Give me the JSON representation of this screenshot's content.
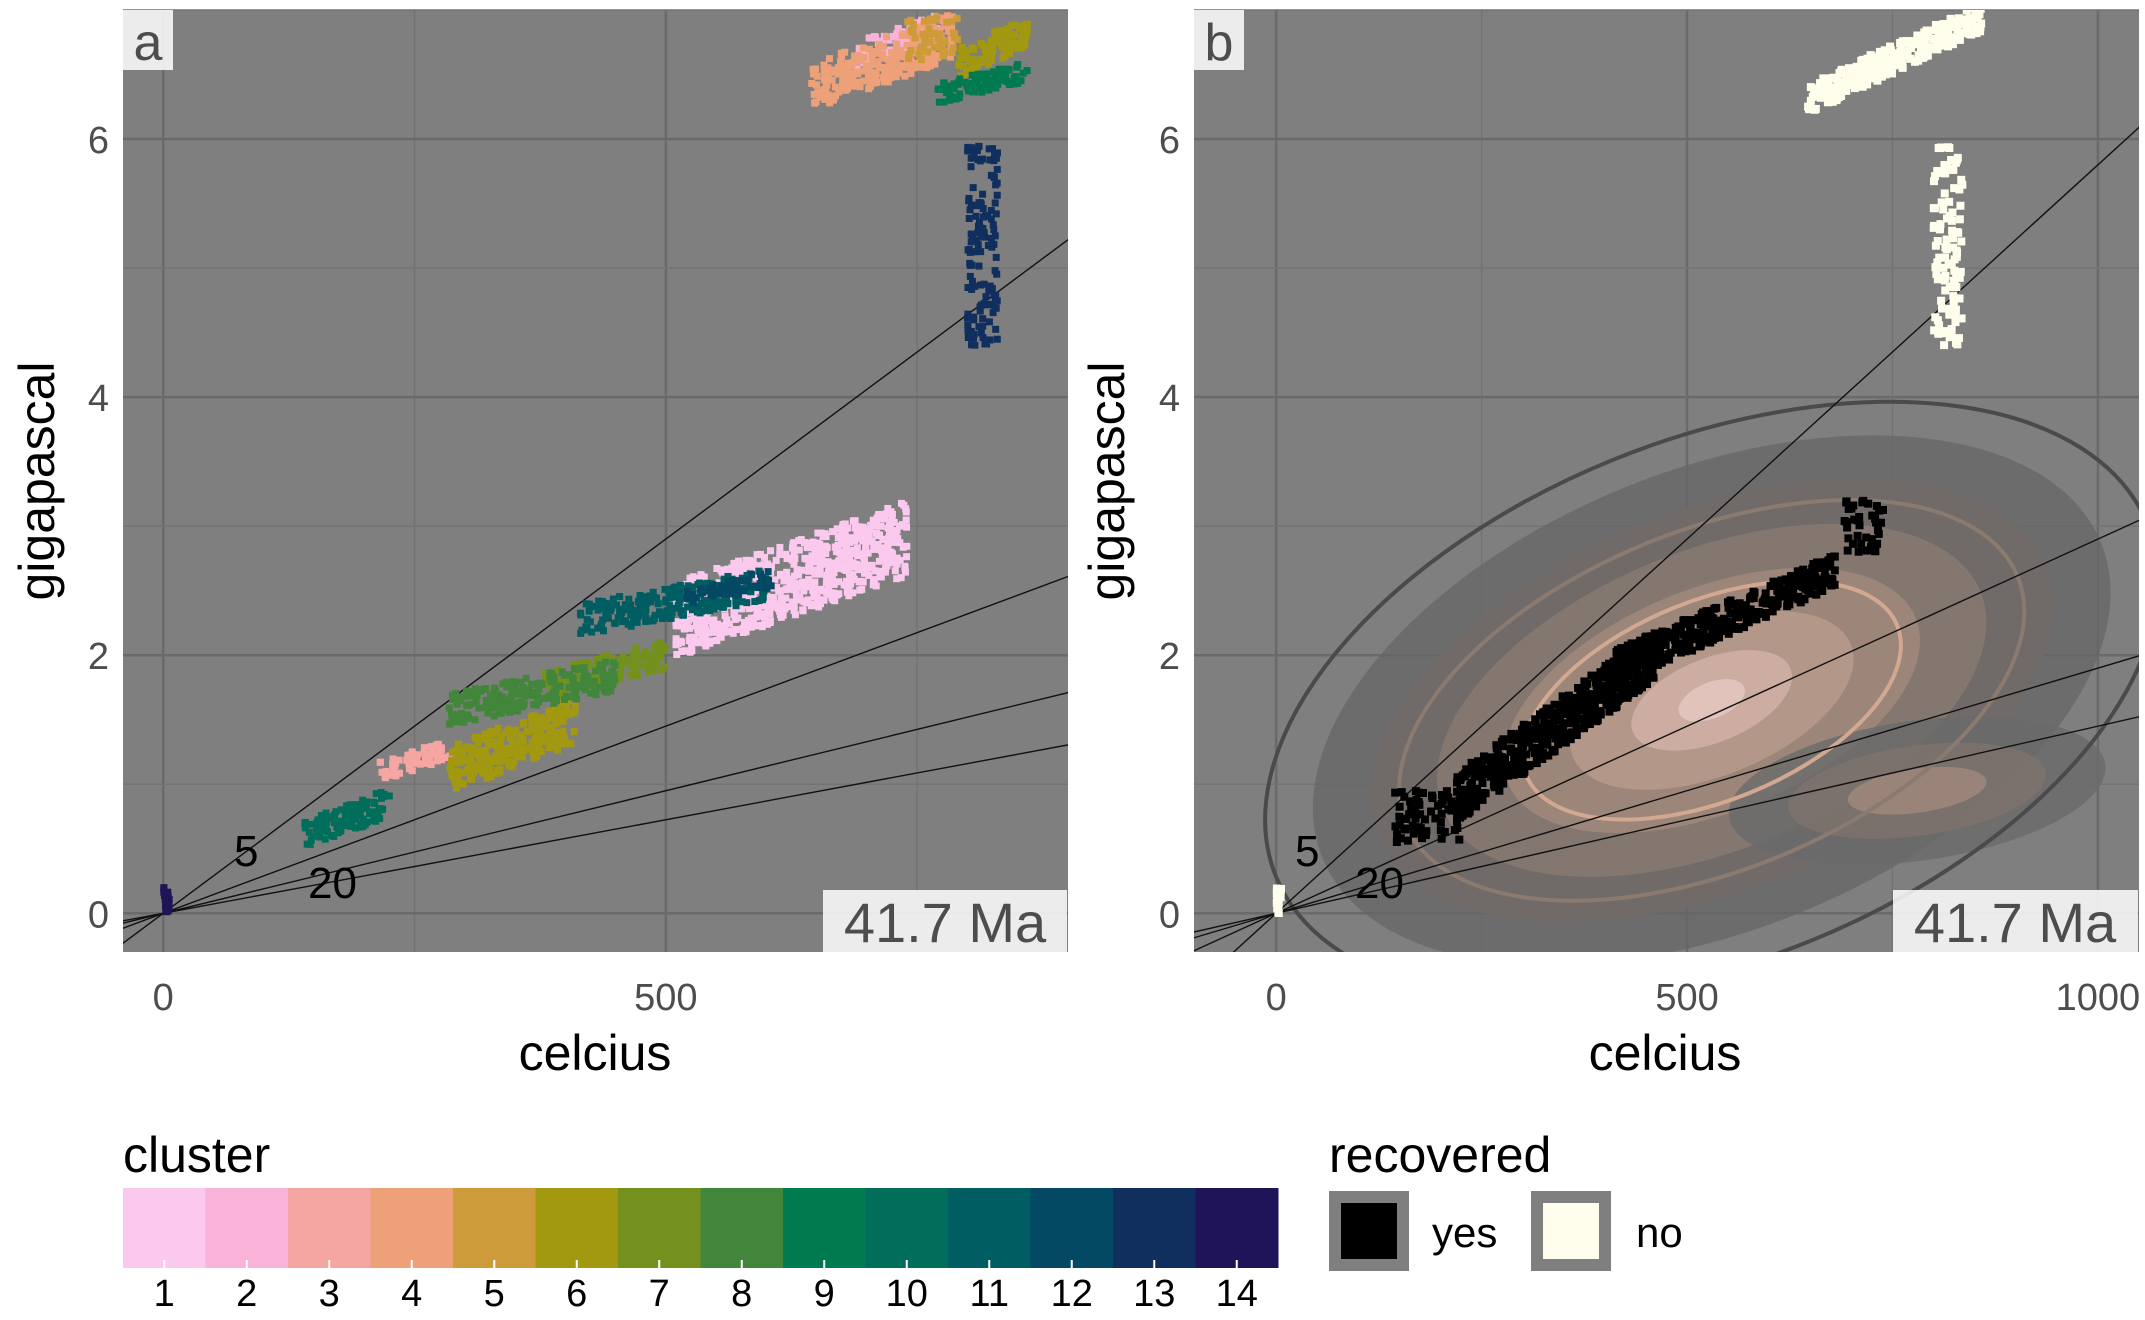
{
  "figure": {
    "panel_a": {
      "tag": "a",
      "age_label": "41.7 Ma",
      "xlabel": "celcius",
      "ylabel": "gigapascal",
      "x_ticks": [
        0,
        500
      ],
      "y_ticks": [
        0,
        2,
        4,
        6
      ]
    },
    "panel_b": {
      "tag": "b",
      "age_label": "41.7 Ma",
      "xlabel": "celcius",
      "ylabel": "gigapascal",
      "x_ticks": [
        0,
        500,
        1000
      ],
      "y_ticks": [
        0,
        2,
        4,
        6
      ]
    },
    "gradient_labels": [
      "5",
      "20"
    ],
    "legend_cluster": {
      "title": "cluster",
      "entries": [
        {
          "label": "1",
          "color": "#FBC8EE"
        },
        {
          "label": "2",
          "color": "#F9B2D8"
        },
        {
          "label": "3",
          "color": "#F6A6A2"
        },
        {
          "label": "4",
          "color": "#EEA078"
        },
        {
          "label": "5",
          "color": "#CD9B3A"
        },
        {
          "label": "6",
          "color": "#A29911"
        },
        {
          "label": "7",
          "color": "#74901D"
        },
        {
          "label": "8",
          "color": "#42863B"
        },
        {
          "label": "9",
          "color": "#007A4F"
        },
        {
          "label": "10",
          "color": "#006E5B"
        },
        {
          "label": "11",
          "color": "#005E62"
        },
        {
          "label": "12",
          "color": "#044964"
        },
        {
          "label": "13",
          "color": "#102E5E"
        },
        {
          "label": "14",
          "color": "#1F1458"
        }
      ]
    },
    "legend_recovered": {
      "title": "recovered",
      "entries": [
        {
          "label": "yes",
          "color": "#000000"
        },
        {
          "label": "no",
          "color": "#FFFEEC"
        }
      ]
    }
  },
  "chart_data": [
    {
      "panel": "a",
      "type": "scatter",
      "xlabel": "celcius",
      "ylabel": "gigapascal",
      "xlim": [
        -40,
        900
      ],
      "ylim": [
        -0.3,
        7.0
      ],
      "background": "#7F7F7F",
      "gradient_lines_slope_gpa_per_c": [
        0.0058,
        0.0029,
        0.0019,
        0.00145
      ],
      "gradient_line_labels": [
        "5",
        "20"
      ],
      "clusters": [
        {
          "cluster": 1,
          "color": "#FBC8EE",
          "x_range": [
            510,
            740
          ],
          "y_range": [
            2.1,
            3.15
          ]
        },
        {
          "cluster": 2,
          "color": "#F9B2D8",
          "x_range": [
            690,
            770
          ],
          "y_range": [
            6.6,
            6.95
          ]
        },
        {
          "cluster": 3,
          "color": "#F6A6A2",
          "x_range": [
            215,
            285
          ],
          "y_range": [
            1.05,
            1.35
          ]
        },
        {
          "cluster": 4,
          "color": "#EEA078",
          "x_range": [
            645,
            785
          ],
          "y_range": [
            6.3,
            6.95
          ]
        },
        {
          "cluster": 5,
          "color": "#CD9B3A",
          "x_range": [
            740,
            790
          ],
          "y_range": [
            6.6,
            6.95
          ]
        },
        {
          "cluster": 6,
          "color": "#A29911",
          "x_range": [
            285,
            410
          ],
          "y_range": [
            1.0,
            1.65
          ]
        },
        {
          "cluster": 6,
          "color": "#A29911",
          "x_range": [
            790,
            860
          ],
          "y_range": [
            6.5,
            6.95
          ]
        },
        {
          "cluster": 7,
          "color": "#74901D",
          "x_range": [
            380,
            500
          ],
          "y_range": [
            1.7,
            2.1
          ]
        },
        {
          "cluster": 8,
          "color": "#42863B",
          "x_range": [
            280,
            450
          ],
          "y_range": [
            1.5,
            1.95
          ]
        },
        {
          "cluster": 9,
          "color": "#007A4F",
          "x_range": [
            770,
            860
          ],
          "y_range": [
            6.3,
            6.6
          ]
        },
        {
          "cluster": 10,
          "color": "#006E5B",
          "x_range": [
            140,
            225
          ],
          "y_range": [
            0.55,
            0.95
          ]
        },
        {
          "cluster": 11,
          "color": "#005E62",
          "x_range": [
            415,
            600
          ],
          "y_range": [
            2.2,
            2.65
          ]
        },
        {
          "cluster": 12,
          "color": "#044964",
          "x_range": [
            520,
            605
          ],
          "y_range": [
            2.4,
            2.65
          ]
        },
        {
          "cluster": 13,
          "color": "#102E5E",
          "x_range": [
            800,
            830
          ],
          "y_range": [
            4.4,
            5.95
          ]
        },
        {
          "cluster": 14,
          "color": "#1F1458",
          "x_range": [
            0,
            6
          ],
          "y_range": [
            0.0,
            0.2
          ]
        }
      ]
    },
    {
      "panel": "b",
      "type": "scatter",
      "xlabel": "celcius",
      "ylabel": "gigapascal",
      "xlim": [
        -100,
        1050
      ],
      "ylim": [
        -0.3,
        7.0
      ],
      "background": "#7F7F7F",
      "gradient_lines_slope_gpa_per_c": [
        0.0058,
        0.0029,
        0.0019,
        0.00145
      ],
      "gradient_line_labels": [
        "5",
        "20"
      ],
      "series": [
        {
          "name": "yes",
          "color": "#000000",
          "regions": [
            {
              "x_range": [
                140,
                230
              ],
              "y_range": [
                0.55,
                0.95
              ]
            },
            {
              "x_range": [
                220,
                460
              ],
              "y_range": [
                0.9,
                2.0
              ]
            },
            {
              "x_range": [
                410,
                680
              ],
              "y_range": [
                1.9,
                2.65
              ]
            },
            {
              "x_range": [
                690,
                740
              ],
              "y_range": [
                2.8,
                3.2
              ]
            }
          ]
        },
        {
          "name": "no",
          "color": "#FFFEEC",
          "regions": [
            {
              "x_range": [
                645,
                860
              ],
              "y_range": [
                6.3,
                6.95
              ]
            },
            {
              "x_range": [
                800,
                835
              ],
              "y_range": [
                4.4,
                5.95
              ]
            },
            {
              "x_range": [
                0,
                6
              ],
              "y_range": [
                0.0,
                0.2
              ]
            }
          ]
        }
      ],
      "density_contours": "filled 2D density of recovered points (dark grey to light pink), centred near 550 celcius, 1.7 gigapascal"
    }
  ]
}
